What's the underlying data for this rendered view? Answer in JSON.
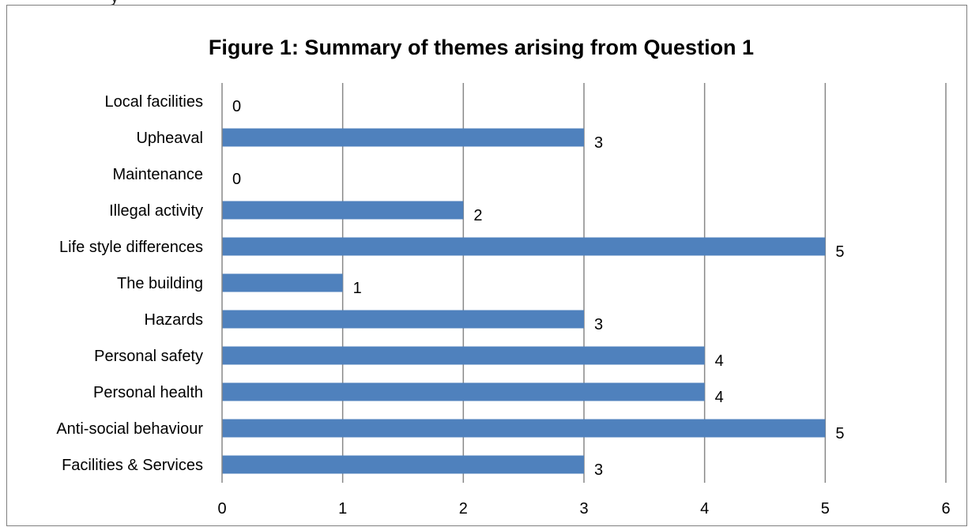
{
  "chart_data": {
    "type": "bar",
    "orientation": "horizontal",
    "title": "Figure 1: Summary of themes arising from Question 1",
    "categories": [
      "Local facilities",
      "Upheaval",
      "Maintenance",
      "Illegal activity",
      "Life style differences",
      "The building",
      "Hazards",
      "Personal safety",
      "Personal health",
      "Anti-social behaviour",
      "Facilities & Services"
    ],
    "values": [
      0,
      3,
      0,
      2,
      5,
      1,
      3,
      4,
      4,
      5,
      3
    ],
    "xlabel": "",
    "ylabel": "",
    "xlim": [
      0,
      6
    ],
    "xticks": [
      "0",
      "1",
      "2",
      "3",
      "4",
      "5",
      "6"
    ],
    "grid": "vertical",
    "legend": "none",
    "data_labels": true,
    "bar_color": "#4F81BD",
    "grid_color": "#888888"
  }
}
